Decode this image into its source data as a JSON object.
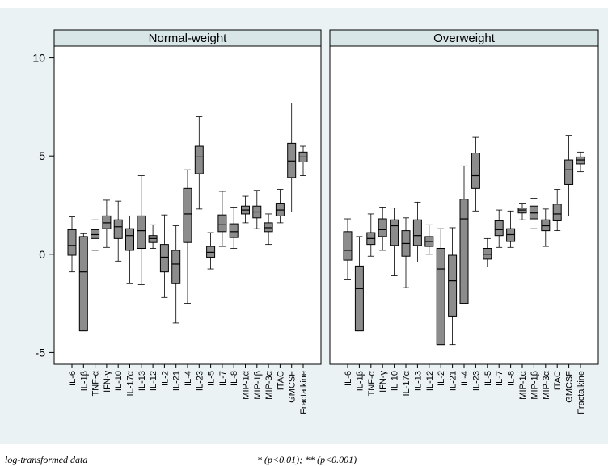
{
  "chart_data": {
    "type": "box",
    "y_ticks": [
      10,
      5,
      0,
      -5
    ],
    "ylim": [
      -5.6,
      10.6
    ],
    "categories": [
      "IL-6",
      "IL-1β",
      "TNF-α",
      "IFN-γ",
      "IL-10",
      "IL-17α",
      "IL-13",
      "IL-12",
      "IL-2",
      "IL-21",
      "IL-4",
      "IL-23",
      "IL-5",
      "IL-7",
      "IL-8",
      "MIP-1α",
      "MIP-1β",
      "MIP-3α",
      "ITAC",
      "GMCSF",
      "Fractalkine"
    ],
    "panels": [
      {
        "title": "Normal-weight",
        "boxes": [
          {
            "min": -0.9,
            "q1": -0.05,
            "median": 0.45,
            "q3": 1.25,
            "max": 1.9
          },
          {
            "min": -3.9,
            "q1": -3.9,
            "median": -0.9,
            "q3": 0.9,
            "max": 1.05
          },
          {
            "min": 0.2,
            "q1": 0.8,
            "median": 1.0,
            "q3": 1.25,
            "max": 1.75
          },
          {
            "min": 0.35,
            "q1": 1.3,
            "median": 1.6,
            "q3": 1.95,
            "max": 2.75
          },
          {
            "min": -0.35,
            "q1": 0.8,
            "median": 1.4,
            "q3": 1.75,
            "max": 2.7
          },
          {
            "min": -1.5,
            "q1": 0.2,
            "median": 0.95,
            "q3": 1.3,
            "max": 1.95
          },
          {
            "min": -1.55,
            "q1": 0.3,
            "median": 1.2,
            "q3": 1.95,
            "max": 4.0
          },
          {
            "min": 0.3,
            "q1": 0.6,
            "median": 0.8,
            "q3": 0.95,
            "max": 1.5
          },
          {
            "min": -2.2,
            "q1": -0.9,
            "median": -0.15,
            "q3": 0.5,
            "max": 2.0
          },
          {
            "min": -3.5,
            "q1": -1.5,
            "median": -0.5,
            "q3": 0.2,
            "max": 1.45
          },
          {
            "min": -2.5,
            "q1": 0.6,
            "median": 2.05,
            "q3": 3.35,
            "max": 4.3
          },
          {
            "min": 2.3,
            "q1": 4.1,
            "median": 4.95,
            "q3": 5.5,
            "max": 7.0
          },
          {
            "min": -0.75,
            "q1": -0.15,
            "median": 0.1,
            "q3": 0.4,
            "max": 1.1
          },
          {
            "min": 0.4,
            "q1": 1.15,
            "median": 1.5,
            "q3": 2.0,
            "max": 3.2
          },
          {
            "min": 0.3,
            "q1": 0.85,
            "median": 1.15,
            "q3": 1.55,
            "max": 2.4
          },
          {
            "min": 1.6,
            "q1": 2.05,
            "median": 2.25,
            "q3": 2.45,
            "max": 2.95
          },
          {
            "min": 1.3,
            "q1": 1.85,
            "median": 2.15,
            "q3": 2.45,
            "max": 3.25
          },
          {
            "min": 0.5,
            "q1": 1.15,
            "median": 1.35,
            "q3": 1.6,
            "max": 2.05
          },
          {
            "min": 1.6,
            "q1": 1.95,
            "median": 2.25,
            "q3": 2.6,
            "max": 3.3
          },
          {
            "min": 2.15,
            "q1": 3.9,
            "median": 4.75,
            "q3": 5.65,
            "max": 7.7
          },
          {
            "min": 4.0,
            "q1": 4.7,
            "median": 4.95,
            "q3": 5.2,
            "max": 5.5
          }
        ]
      },
      {
        "title": "Overweight",
        "boxes": [
          {
            "min": -1.3,
            "q1": -0.3,
            "median": 0.2,
            "q3": 1.15,
            "max": 1.8
          },
          {
            "min": -3.9,
            "q1": -3.9,
            "median": -1.75,
            "q3": -0.6,
            "max": 0.9
          },
          {
            "min": -0.1,
            "q1": 0.5,
            "median": 0.8,
            "q3": 1.1,
            "max": 2.05
          },
          {
            "min": 0.2,
            "q1": 0.9,
            "median": 1.25,
            "q3": 1.8,
            "max": 2.4
          },
          {
            "min": -1.1,
            "q1": 0.45,
            "median": 1.45,
            "q3": 1.75,
            "max": 2.35
          },
          {
            "min": -1.7,
            "q1": -0.1,
            "median": 0.55,
            "q3": 1.2,
            "max": 1.85
          },
          {
            "min": -0.4,
            "q1": 0.45,
            "median": 0.95,
            "q3": 1.75,
            "max": 2.65
          },
          {
            "min": 0.0,
            "q1": 0.4,
            "median": 0.65,
            "q3": 0.9,
            "max": 1.5
          },
          {
            "min": -4.6,
            "q1": -4.6,
            "median": -0.75,
            "q3": 0.3,
            "max": 1.3
          },
          {
            "min": -4.6,
            "q1": -3.15,
            "median": -1.35,
            "q3": -0.05,
            "max": 1.35
          },
          {
            "min": -2.5,
            "q1": -2.5,
            "median": 1.8,
            "q3": 2.8,
            "max": 4.5
          },
          {
            "min": 2.2,
            "q1": 3.35,
            "median": 4.0,
            "q3": 5.15,
            "max": 5.95
          },
          {
            "min": -0.65,
            "q1": -0.25,
            "median": 0.0,
            "q3": 0.3,
            "max": 0.8
          },
          {
            "min": 0.35,
            "q1": 0.95,
            "median": 1.25,
            "q3": 1.7,
            "max": 2.25
          },
          {
            "min": 0.35,
            "q1": 0.65,
            "median": 1.0,
            "q3": 1.3,
            "max": 2.2
          },
          {
            "min": 1.75,
            "q1": 2.1,
            "median": 2.25,
            "q3": 2.35,
            "max": 2.6
          },
          {
            "min": 1.3,
            "q1": 1.8,
            "median": 2.1,
            "q3": 2.45,
            "max": 2.85
          },
          {
            "min": 0.4,
            "q1": 1.2,
            "median": 1.45,
            "q3": 1.75,
            "max": 2.3
          },
          {
            "min": 1.2,
            "q1": 1.7,
            "median": 2.05,
            "q3": 2.55,
            "max": 3.3
          },
          {
            "min": 1.95,
            "q1": 3.55,
            "median": 4.3,
            "q3": 4.8,
            "max": 6.05
          },
          {
            "min": 4.2,
            "q1": 4.6,
            "median": 4.8,
            "q3": 4.95,
            "max": 5.2
          }
        ]
      }
    ],
    "box_color": "#8c8c8c",
    "header_color": "#d9e6e8",
    "background_color": "#eaf2f3",
    "plot_color": "#ffffff"
  },
  "footnotes": {
    "left": "log-transformed data",
    "right": "* (p<0.01); ** (p<0.001)"
  }
}
